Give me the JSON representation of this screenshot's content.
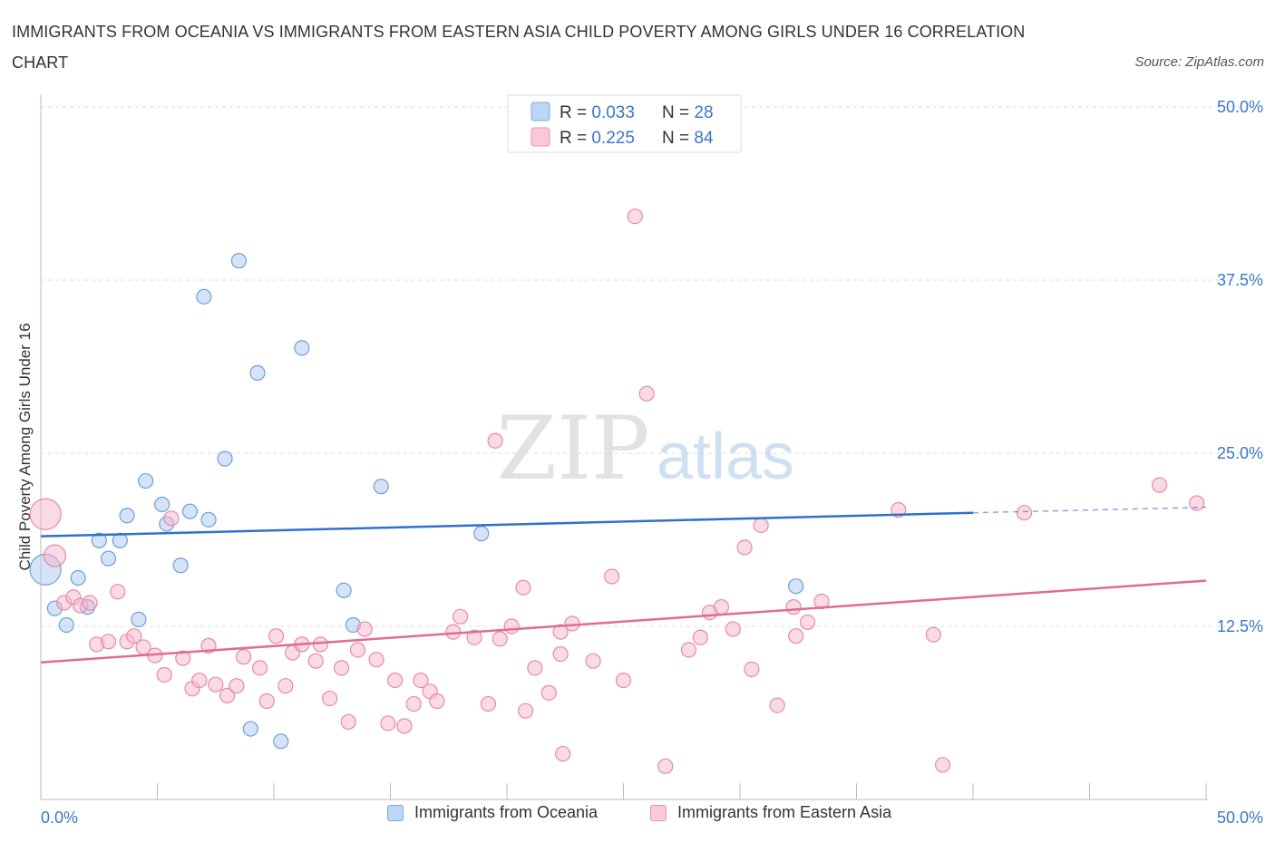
{
  "title": "IMMIGRANTS FROM OCEANIA VS IMMIGRANTS FROM EASTERN ASIA CHILD POVERTY AMONG GIRLS UNDER 16 CORRELATION CHART",
  "source": "Source: ZipAtlas.com",
  "watermark": {
    "zip": "ZIP",
    "atlas": "atlas"
  },
  "chart_data": {
    "type": "scatter",
    "title": "IMMIGRANTS FROM OCEANIA VS IMMIGRANTS FROM EASTERN ASIA CHILD POVERTY AMONG GIRLS UNDER 16 CORRELATION CHART",
    "xlabel": "",
    "ylabel": "Child Poverty Among Girls Under 16",
    "xlim": [
      0,
      50
    ],
    "ylim": [
      0,
      50
    ],
    "x_tick_labels": [
      "0.0%",
      "50.0%"
    ],
    "y_ticks": [
      12.5,
      25,
      37.5,
      50
    ],
    "y_tick_labels": [
      "12.5%",
      "25.0%",
      "37.5%",
      "50.0%"
    ],
    "grid": true,
    "legend_position": "top-center",
    "series": [
      {
        "name": "Immigrants from Oceania",
        "color": "#a9c8ef",
        "stroke": "#6f9fd8",
        "line_color": "#2f72cc",
        "R": "0.033",
        "N": "28",
        "trend": {
          "x0": 0,
          "y0": 19.0,
          "x1": 40,
          "y1": 20.7,
          "dash_x1": 50,
          "dash_y1": 21.1
        },
        "points": [
          {
            "x": 0.2,
            "y": 16.6,
            "big": true
          },
          {
            "x": 0.6,
            "y": 13.8
          },
          {
            "x": 1.1,
            "y": 12.6
          },
          {
            "x": 1.6,
            "y": 16.0
          },
          {
            "x": 2.0,
            "y": 13.9
          },
          {
            "x": 2.5,
            "y": 18.7
          },
          {
            "x": 2.9,
            "y": 17.4
          },
          {
            "x": 3.4,
            "y": 18.7
          },
          {
            "x": 3.7,
            "y": 20.5
          },
          {
            "x": 4.2,
            "y": 13.0
          },
          {
            "x": 4.5,
            "y": 23.0
          },
          {
            "x": 5.2,
            "y": 21.3
          },
          {
            "x": 5.4,
            "y": 19.9
          },
          {
            "x": 6.0,
            "y": 16.9
          },
          {
            "x": 6.4,
            "y": 20.8
          },
          {
            "x": 7.0,
            "y": 36.3
          },
          {
            "x": 7.2,
            "y": 20.2
          },
          {
            "x": 7.9,
            "y": 24.6
          },
          {
            "x": 8.5,
            "y": 38.9
          },
          {
            "x": 9.0,
            "y": 5.1
          },
          {
            "x": 9.3,
            "y": 30.8
          },
          {
            "x": 10.3,
            "y": 4.2
          },
          {
            "x": 11.2,
            "y": 32.6
          },
          {
            "x": 13.0,
            "y": 15.1
          },
          {
            "x": 13.4,
            "y": 12.6
          },
          {
            "x": 14.6,
            "y": 22.6
          },
          {
            "x": 18.9,
            "y": 19.2
          },
          {
            "x": 32.4,
            "y": 15.4
          }
        ]
      },
      {
        "name": "Immigrants from Eastern Asia",
        "color": "#f5b8cb",
        "stroke": "#e889a6",
        "line_color": "#e06b93",
        "R": "0.225",
        "N": "84",
        "trend": {
          "x0": 0,
          "y0": 9.9,
          "x1": 50,
          "y1": 15.8
        },
        "points": [
          {
            "x": 0.2,
            "y": 20.6,
            "big": true
          },
          {
            "x": 0.6,
            "y": 17.6,
            "mid": true
          },
          {
            "x": 1.0,
            "y": 14.2
          },
          {
            "x": 1.4,
            "y": 14.6
          },
          {
            "x": 1.7,
            "y": 14.0
          },
          {
            "x": 2.1,
            "y": 14.2
          },
          {
            "x": 2.4,
            "y": 11.2
          },
          {
            "x": 2.9,
            "y": 11.4
          },
          {
            "x": 3.3,
            "y": 15.0
          },
          {
            "x": 3.7,
            "y": 11.4
          },
          {
            "x": 4.0,
            "y": 11.8
          },
          {
            "x": 4.4,
            "y": 11.0
          },
          {
            "x": 4.9,
            "y": 10.4
          },
          {
            "x": 5.3,
            "y": 9.0
          },
          {
            "x": 5.6,
            "y": 20.3
          },
          {
            "x": 6.1,
            "y": 10.2
          },
          {
            "x": 6.5,
            "y": 8.0
          },
          {
            "x": 6.8,
            "y": 8.6
          },
          {
            "x": 7.2,
            "y": 11.1
          },
          {
            "x": 7.5,
            "y": 8.3
          },
          {
            "x": 8.0,
            "y": 7.5
          },
          {
            "x": 8.4,
            "y": 8.2
          },
          {
            "x": 8.7,
            "y": 10.3
          },
          {
            "x": 9.4,
            "y": 9.5
          },
          {
            "x": 9.7,
            "y": 7.1
          },
          {
            "x": 10.1,
            "y": 11.8
          },
          {
            "x": 10.5,
            "y": 8.2
          },
          {
            "x": 10.8,
            "y": 10.6
          },
          {
            "x": 11.2,
            "y": 11.2
          },
          {
            "x": 11.8,
            "y": 10.0
          },
          {
            "x": 12.0,
            "y": 11.2
          },
          {
            "x": 12.4,
            "y": 7.3
          },
          {
            "x": 12.9,
            "y": 9.5
          },
          {
            "x": 13.2,
            "y": 5.6
          },
          {
            "x": 13.6,
            "y": 10.8
          },
          {
            "x": 13.9,
            "y": 12.3
          },
          {
            "x": 14.4,
            "y": 10.1
          },
          {
            "x": 14.9,
            "y": 5.5
          },
          {
            "x": 15.2,
            "y": 8.6
          },
          {
            "x": 15.6,
            "y": 5.3
          },
          {
            "x": 16.0,
            "y": 6.9
          },
          {
            "x": 16.3,
            "y": 8.6
          },
          {
            "x": 16.7,
            "y": 7.8
          },
          {
            "x": 17.0,
            "y": 7.1
          },
          {
            "x": 17.7,
            "y": 12.1
          },
          {
            "x": 18.0,
            "y": 13.2
          },
          {
            "x": 18.6,
            "y": 11.7
          },
          {
            "x": 19.2,
            "y": 6.9
          },
          {
            "x": 19.5,
            "y": 25.9
          },
          {
            "x": 19.7,
            "y": 11.6
          },
          {
            "x": 20.2,
            "y": 12.5
          },
          {
            "x": 20.7,
            "y": 15.3
          },
          {
            "x": 20.8,
            "y": 6.4
          },
          {
            "x": 21.2,
            "y": 9.5
          },
          {
            "x": 21.8,
            "y": 7.7
          },
          {
            "x": 22.3,
            "y": 12.1
          },
          {
            "x": 22.4,
            "y": 3.3
          },
          {
            "x": 22.8,
            "y": 12.7
          },
          {
            "x": 23.7,
            "y": 10.0
          },
          {
            "x": 24.5,
            "y": 16.1
          },
          {
            "x": 25.0,
            "y": 8.6
          },
          {
            "x": 25.5,
            "y": 42.1
          },
          {
            "x": 26.0,
            "y": 29.3
          },
          {
            "x": 26.8,
            "y": 2.4
          },
          {
            "x": 27.8,
            "y": 10.8
          },
          {
            "x": 28.3,
            "y": 11.7
          },
          {
            "x": 28.7,
            "y": 13.5
          },
          {
            "x": 29.2,
            "y": 13.9
          },
          {
            "x": 29.7,
            "y": 12.3
          },
          {
            "x": 30.2,
            "y": 18.2
          },
          {
            "x": 30.5,
            "y": 9.4
          },
          {
            "x": 30.9,
            "y": 19.8
          },
          {
            "x": 31.6,
            "y": 6.8
          },
          {
            "x": 32.3,
            "y": 13.9
          },
          {
            "x": 32.4,
            "y": 11.8
          },
          {
            "x": 32.9,
            "y": 12.8
          },
          {
            "x": 33.5,
            "y": 14.3
          },
          {
            "x": 36.8,
            "y": 20.9
          },
          {
            "x": 38.3,
            "y": 11.9
          },
          {
            "x": 38.7,
            "y": 2.5
          },
          {
            "x": 42.2,
            "y": 20.7
          },
          {
            "x": 48.0,
            "y": 22.7
          },
          {
            "x": 49.6,
            "y": 21.4
          },
          {
            "x": 22.3,
            "y": 10.5
          }
        ]
      }
    ]
  },
  "legend_top": [
    {
      "r_label": "R = ",
      "r_value": "0.033",
      "n_label": "N = ",
      "n_value": "28"
    },
    {
      "r_label": "R = ",
      "r_value": "0.225",
      "n_label": "N = ",
      "n_value": "84"
    }
  ],
  "legend_bottom": [
    "Immigrants from Oceania",
    "Immigrants from Eastern Asia"
  ]
}
